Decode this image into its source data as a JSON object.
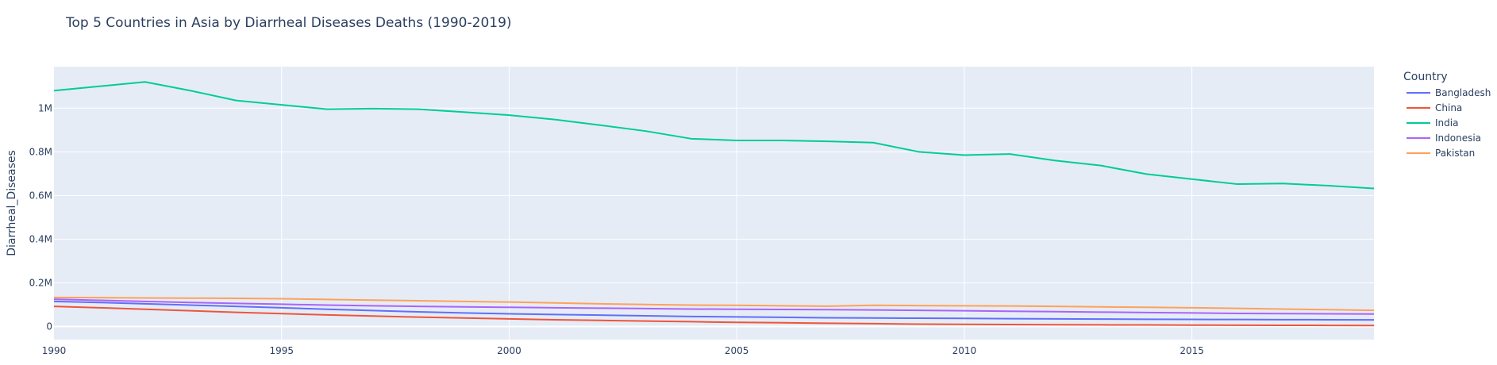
{
  "chart_data": {
    "type": "line",
    "title": "Top 5 Countries in Asia by Diarrheal Diseases Deaths (1990-2019)",
    "xlabel": "",
    "ylabel": "Diarrheal_Diseases",
    "xlim": [
      1990,
      2019
    ],
    "ylim": [
      -60000,
      1190000
    ],
    "x_ticks": [
      1990,
      1995,
      2000,
      2005,
      2010,
      2015
    ],
    "y_ticks": [
      {
        "value": 0,
        "label": "0"
      },
      {
        "value": 200000,
        "label": "0.2M"
      },
      {
        "value": 400000,
        "label": "0.4M"
      },
      {
        "value": 600000,
        "label": "0.6M"
      },
      {
        "value": 800000,
        "label": "0.8M"
      },
      {
        "value": 1000000,
        "label": "1M"
      }
    ],
    "grid": true,
    "legend": {
      "title": "Country",
      "position": "right"
    },
    "x": [
      1990,
      1991,
      1992,
      1993,
      1994,
      1995,
      1996,
      1997,
      1998,
      1999,
      2000,
      2001,
      2002,
      2003,
      2004,
      2005,
      2006,
      2007,
      2008,
      2009,
      2010,
      2011,
      2012,
      2013,
      2014,
      2015,
      2016,
      2017,
      2018,
      2019
    ],
    "series": [
      {
        "name": "Bangladesh",
        "color": "#636efa",
        "values": [
          115000,
          110000,
          104000,
          98000,
          92000,
          86000,
          79000,
          73000,
          67000,
          62000,
          58000,
          55000,
          52000,
          49000,
          46000,
          44000,
          42000,
          40000,
          39000,
          38000,
          37000,
          36000,
          35000,
          34000,
          33000,
          32500,
          32000,
          31500,
          31000,
          30500
        ]
      },
      {
        "name": "China",
        "color": "#ef553b",
        "values": [
          92000,
          86000,
          79000,
          72000,
          65000,
          59000,
          53000,
          48000,
          43000,
          39000,
          35000,
          31000,
          28000,
          25000,
          22000,
          19000,
          17000,
          15000,
          13000,
          11000,
          10000,
          9000,
          8000,
          7500,
          7000,
          6500,
          6000,
          5500,
          5000,
          4500
        ]
      },
      {
        "name": "India",
        "color": "#00cc96",
        "values": [
          1080000,
          1100000,
          1120000,
          1080000,
          1035000,
          1015000,
          995000,
          998000,
          995000,
          982000,
          968000,
          948000,
          922000,
          895000,
          860000,
          852000,
          852000,
          848000,
          842000,
          800000,
          785000,
          790000,
          760000,
          737000,
          698000,
          675000,
          652000,
          655000,
          645000,
          632000
        ]
      },
      {
        "name": "Indonesia",
        "color": "#ab63fa",
        "values": [
          125000,
          120000,
          115000,
          110000,
          106000,
          102000,
          98000,
          95000,
          92000,
          90000,
          88000,
          86000,
          84000,
          82000,
          80000,
          79000,
          78000,
          77000,
          76000,
          74000,
          72000,
          70000,
          68000,
          66000,
          64000,
          62000,
          60000,
          59000,
          58000,
          57000
        ]
      },
      {
        "name": "Pakistan",
        "color": "#ffa15a",
        "values": [
          133000,
          132000,
          131000,
          130000,
          129000,
          127000,
          124000,
          121000,
          118000,
          115000,
          112000,
          108000,
          104000,
          101000,
          98000,
          97000,
          95000,
          93000,
          97000,
          96000,
          95000,
          94000,
          92000,
          90000,
          88000,
          86000,
          83000,
          80000,
          77000,
          74000
        ]
      }
    ]
  }
}
